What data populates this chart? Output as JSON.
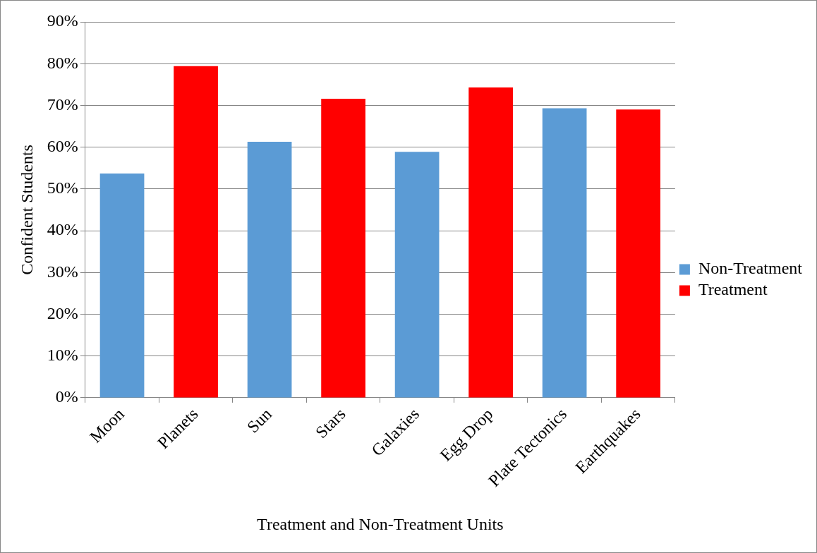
{
  "chart_data": {
    "type": "bar",
    "xlabel": "Treatment and Non-Treatment Units",
    "ylabel": "Confident Students",
    "categories": [
      "Moon",
      "Planets",
      "Sun",
      "Stars",
      "Galaxies",
      "Egg Drop",
      "Plate Tectonics",
      "Earthquakes"
    ],
    "series": [
      {
        "name": "Non-Treatment",
        "color": "#5b9bd5",
        "values": [
          53.7,
          null,
          61.3,
          null,
          58.9,
          null,
          69.3,
          null
        ]
      },
      {
        "name": "Treatment",
        "color": "#ff0000",
        "values": [
          null,
          79.4,
          null,
          71.6,
          null,
          74.3,
          null,
          69.0
        ]
      }
    ],
    "ylim": [
      0,
      90
    ],
    "yticks": [
      {
        "value": 0,
        "label": "0%"
      },
      {
        "value": 10,
        "label": "10%"
      },
      {
        "value": 20,
        "label": "20%"
      },
      {
        "value": 30,
        "label": "30%"
      },
      {
        "value": 40,
        "label": "40%"
      },
      {
        "value": 50,
        "label": "50%"
      },
      {
        "value": 60,
        "label": "60%"
      },
      {
        "value": 70,
        "label": "70%"
      },
      {
        "value": 80,
        "label": "80%"
      },
      {
        "value": 90,
        "label": "90%"
      }
    ],
    "grid": "y",
    "legend": "right"
  }
}
